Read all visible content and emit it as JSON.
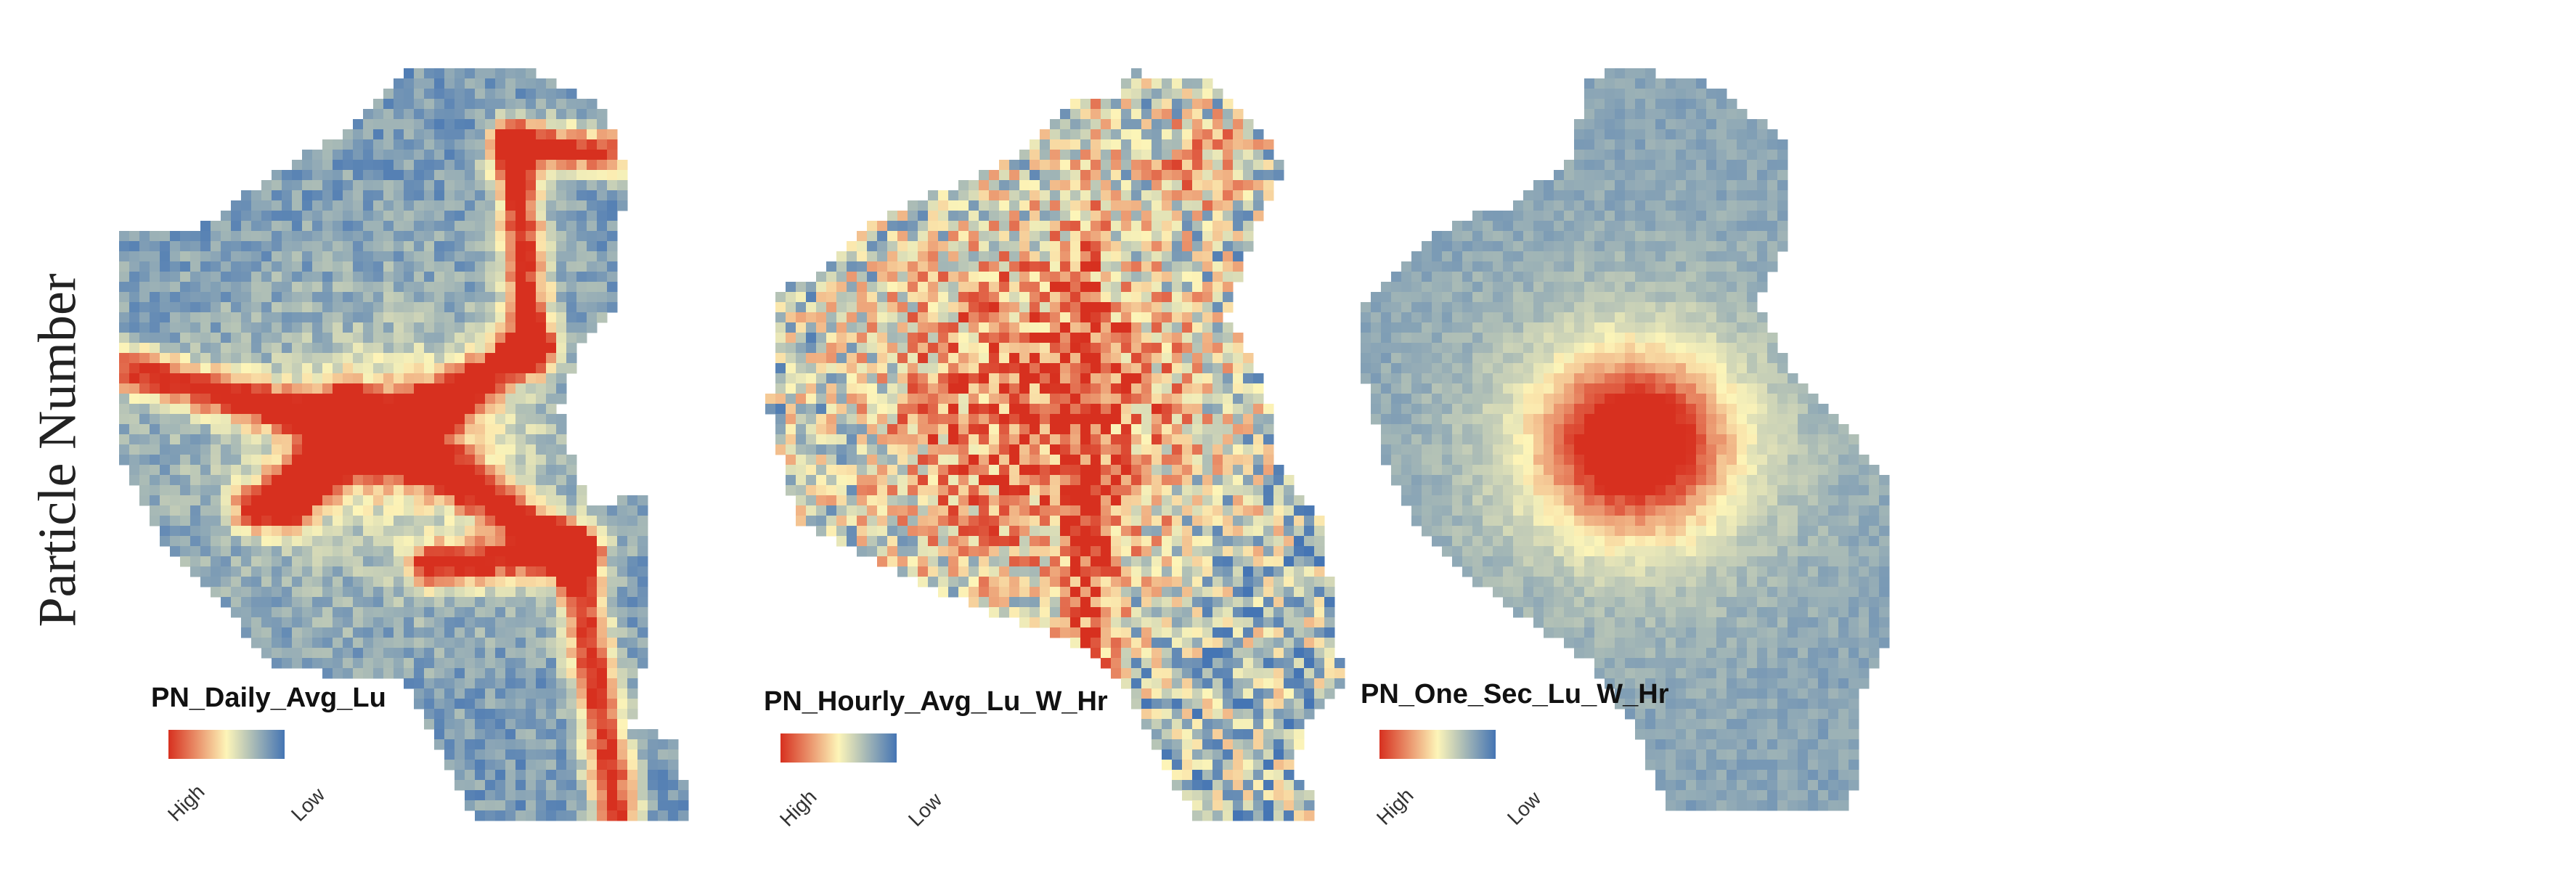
{
  "y_axis_label": "Particle Number",
  "colors": {
    "high": "#d7301f",
    "mid": "#fdf5b8",
    "low": "#4575b4"
  },
  "panels": [
    {
      "id": "daily",
      "legend_title": "PN_Daily_Avg_Lu",
      "legend_high": "High",
      "legend_low": "Low",
      "hotspot": "corridors"
    },
    {
      "id": "hourly",
      "legend_title": "PN_Hourly_Avg_Lu_W_Hr",
      "legend_high": "High",
      "legend_low": "Low",
      "hotspot": "center-noisy"
    },
    {
      "id": "onesec",
      "legend_title": "PN_One_Sec_Lu_W_Hr",
      "legend_high": "High",
      "legend_low": "Low",
      "hotspot": "center-compact"
    }
  ]
}
